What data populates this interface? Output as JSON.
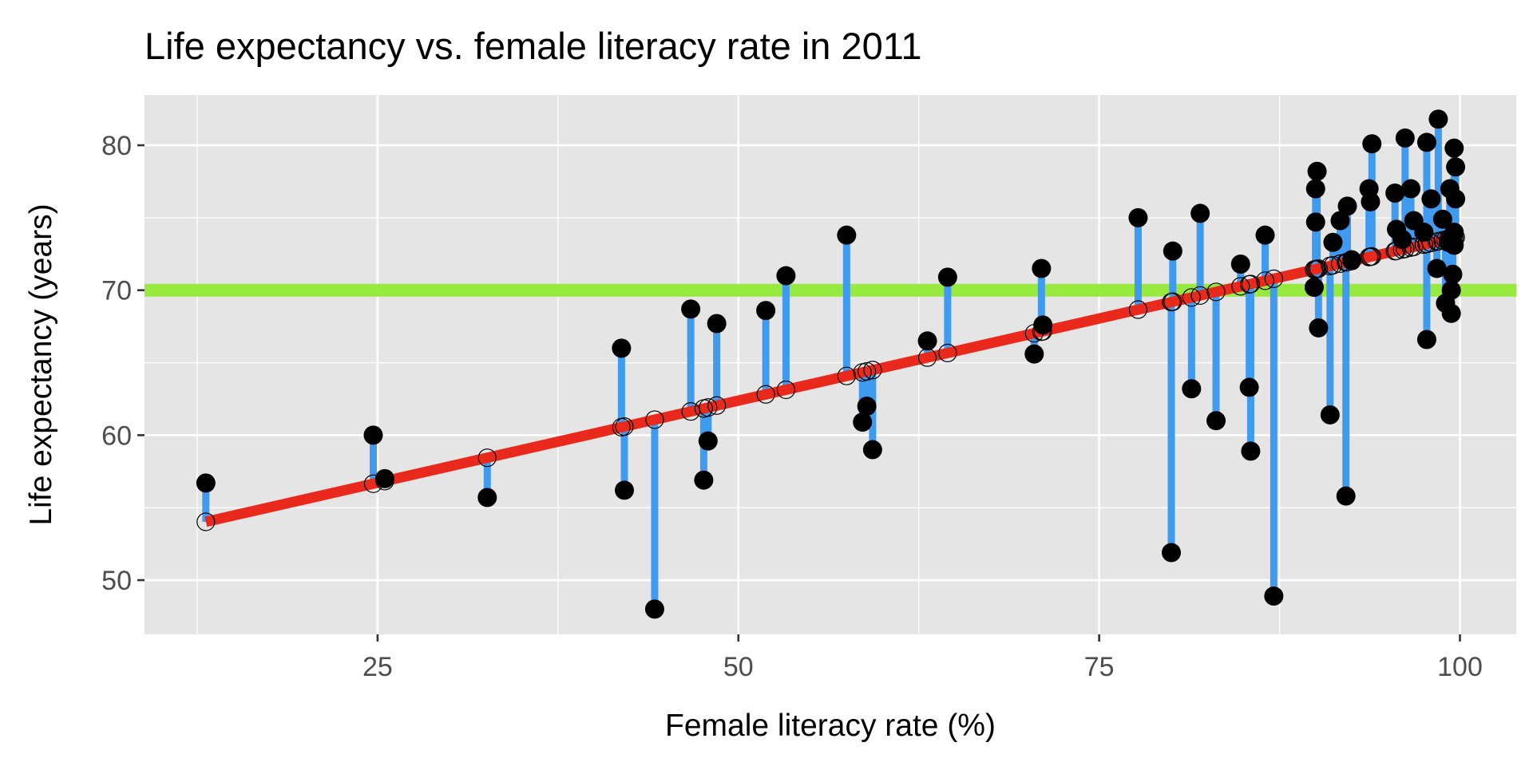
{
  "chart_data": {
    "type": "scatter",
    "title": "Life expectancy vs. female literacy rate in 2011",
    "xlabel": "Female literacy rate (%)",
    "ylabel": "Life expectancy (years)",
    "xlim": [
      8.85,
      103.9
    ],
    "ylim": [
      46.26,
      83.47
    ],
    "x_ticks": [
      25,
      50,
      75,
      100
    ],
    "y_ticks": [
      50,
      60,
      70,
      80
    ],
    "x_tick_labels": [
      "25",
      "50",
      "75",
      "100"
    ],
    "y_tick_labels": [
      "50",
      "60",
      "70",
      "80"
    ],
    "grid": true,
    "reference_line": {
      "y": 70,
      "color": "#97E83F"
    },
    "regression": {
      "intercept_at_13": 54.0,
      "slope": 0.2266,
      "x_range": [
        13.1,
        99.7
      ],
      "color": "#E8291C"
    },
    "residual_color": "#3E9BF0",
    "points": [
      [
        13.1,
        56.7
      ],
      [
        24.7,
        60.0
      ],
      [
        25.5,
        57.0
      ],
      [
        32.6,
        55.7
      ],
      [
        41.9,
        66.0
      ],
      [
        42.1,
        56.2
      ],
      [
        44.2,
        48.0
      ],
      [
        46.7,
        68.7
      ],
      [
        47.6,
        56.9
      ],
      [
        47.9,
        59.6
      ],
      [
        48.5,
        67.7
      ],
      [
        51.9,
        68.6
      ],
      [
        53.3,
        71.0
      ],
      [
        57.5,
        73.8
      ],
      [
        58.6,
        60.9
      ],
      [
        58.9,
        62.0
      ],
      [
        59.3,
        59.0
      ],
      [
        63.1,
        66.5
      ],
      [
        64.5,
        70.9
      ],
      [
        70.5,
        65.6
      ],
      [
        71.0,
        71.5
      ],
      [
        71.1,
        67.6
      ],
      [
        77.7,
        75.0
      ],
      [
        80.1,
        72.7
      ],
      [
        80.0,
        51.9
      ],
      [
        81.4,
        63.2
      ],
      [
        82.0,
        75.3
      ],
      [
        83.1,
        61.0
      ],
      [
        84.8,
        71.8
      ],
      [
        85.4,
        63.3
      ],
      [
        85.5,
        58.9
      ],
      [
        86.5,
        73.8
      ],
      [
        87.1,
        48.9
      ],
      [
        90.1,
        78.2
      ],
      [
        90.0,
        77.0
      ],
      [
        90.0,
        74.7
      ],
      [
        89.9,
        70.2
      ],
      [
        90.2,
        67.4
      ],
      [
        91.0,
        61.4
      ],
      [
        91.2,
        73.3
      ],
      [
        91.7,
        74.8
      ],
      [
        92.2,
        75.8
      ],
      [
        92.1,
        55.8
      ],
      [
        92.5,
        72.1
      ],
      [
        93.7,
        77.0
      ],
      [
        93.9,
        80.1
      ],
      [
        93.8,
        76.1
      ],
      [
        95.5,
        76.7
      ],
      [
        96.2,
        80.5
      ],
      [
        96.6,
        77.0
      ],
      [
        96.8,
        74.8
      ],
      [
        97.7,
        80.2
      ],
      [
        97.7,
        66.6
      ],
      [
        98.0,
        76.3
      ],
      [
        98.5,
        81.8
      ],
      [
        98.4,
        71.5
      ],
      [
        98.8,
        74.9
      ],
      [
        99.0,
        69.1
      ],
      [
        99.3,
        77.0
      ],
      [
        99.4,
        68.4
      ],
      [
        99.6,
        79.8
      ],
      [
        99.7,
        78.5
      ],
      [
        99.7,
        76.3
      ],
      [
        99.6,
        74.0
      ],
      [
        99.6,
        73.1
      ],
      [
        99.5,
        71.1
      ],
      [
        99.4,
        70.0
      ],
      [
        95.6,
        74.2
      ],
      [
        96.0,
        73.5
      ],
      [
        97.5,
        74.0
      ],
      [
        99.2,
        73.3
      ]
    ]
  }
}
